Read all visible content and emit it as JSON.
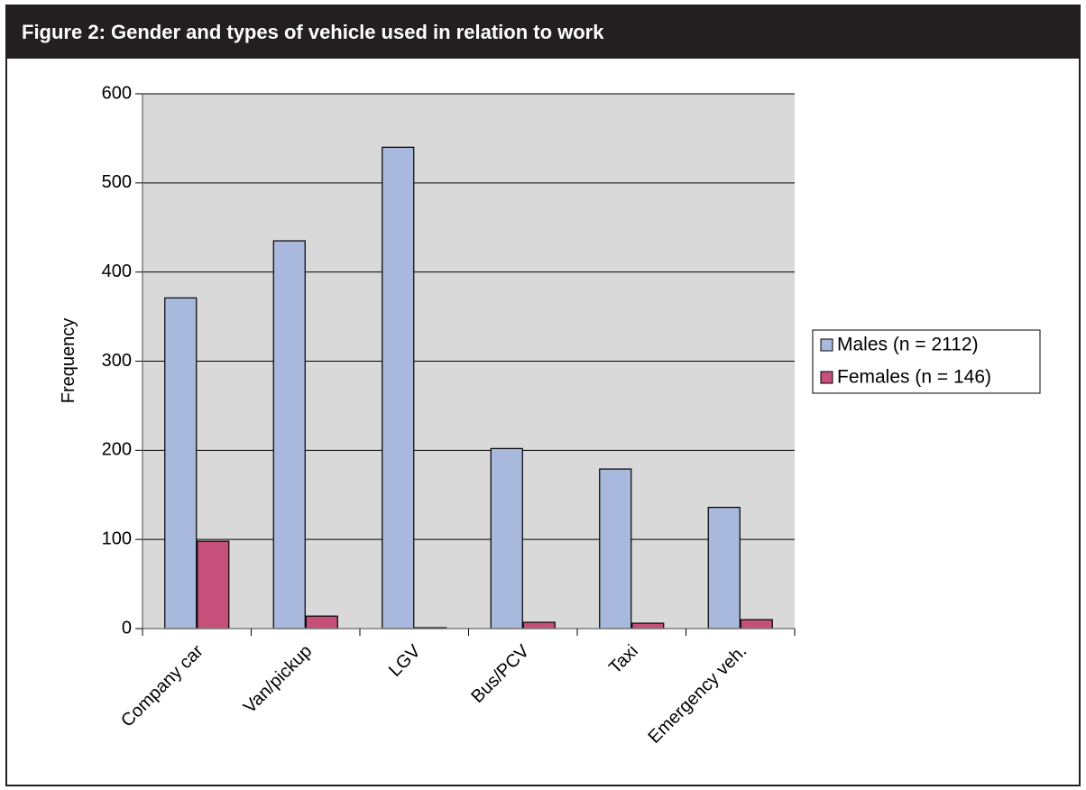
{
  "figure": {
    "title": "Figure 2:  Gender and types of vehicle used in relation to work"
  },
  "chart_data": {
    "type": "bar",
    "categories": [
      "Company car",
      "Van/pickup",
      "LGV",
      "Bus/PCV",
      "Taxi",
      "Emergency veh."
    ],
    "series": [
      {
        "name": "Males (n = 2112)",
        "values": [
          371,
          435,
          540,
          202,
          179,
          136
        ],
        "color": "#a9b8dd"
      },
      {
        "name": "Females (n = 146)",
        "values": [
          98,
          14,
          1,
          7,
          6,
          10
        ],
        "color": "#c5517b"
      }
    ],
    "xlabel": "",
    "ylabel": "Frequency",
    "ylim": [
      0,
      600
    ],
    "yticks": [
      0,
      100,
      200,
      300,
      400,
      500,
      600
    ],
    "grid": true,
    "plot_background": "#d9d9d9",
    "legend_position": "right"
  }
}
